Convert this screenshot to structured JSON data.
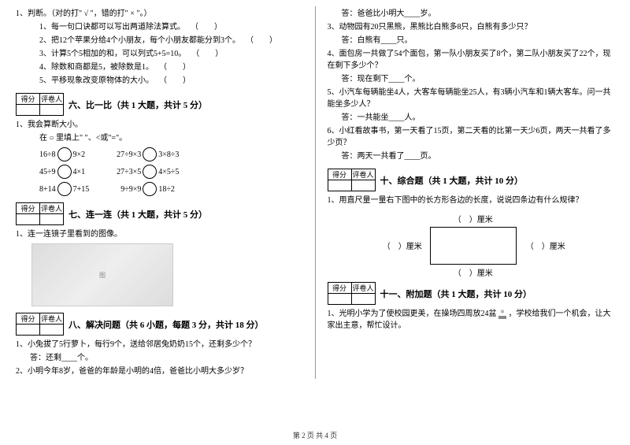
{
  "left": {
    "q1": {
      "stem": "1、判断。（对的打\" √ \"，错的打\" × \"。）",
      "items": [
        "1、每一句口诀都可以写出两道除法算式。",
        "2、把12个苹果分给4个小朋友，每个小朋友都能分到3个。",
        "3、计算5个5相加的和，可以列式5+5=10。",
        "4、除数和商都是5，被除数是1。",
        "5、平移现象改变原物体的大小。"
      ]
    },
    "sec6": {
      "title": "六、比一比（共 1 大题，共计 5 分）"
    },
    "compare": {
      "stem": "1、我会算断大小。",
      "hint": "在 ○ 里填上\" \"、<或\"=\"。",
      "rows": [
        [
          [
            "16÷8",
            "9×2"
          ],
          [
            "27÷9×3",
            "3×8÷3"
          ]
        ],
        [
          [
            "45÷9",
            "4×1"
          ],
          [
            "27÷3×5",
            "4×5÷5"
          ]
        ],
        [
          [
            "8+14",
            "7+15"
          ],
          [
            "9÷9×9",
            "18÷2"
          ]
        ]
      ]
    },
    "sec7": {
      "title": "七、连一连（共 1 大题，共计 5 分）"
    },
    "q7": {
      "stem": "1、连一连镜子里看到的图像。"
    },
    "sec8": {
      "title": "八、解决问题（共 6 小题，每题 3 分，共计 18 分）"
    },
    "q8_1": {
      "stem": "1、小兔拔了5行萝卜，每行9个，送给邻居兔奶奶15个，还剩多少个？",
      "ans": "答：还剩____个。"
    },
    "q8_2": {
      "stem": "2、小明今年8岁，爸爸的年龄是小明的4倍，爸爸比小明大多少岁？"
    },
    "scorebox": {
      "c1": "得分",
      "c2": "评卷人"
    }
  },
  "right": {
    "a2": "答：爸爸比小明大____岁。",
    "q3": {
      "stem": "3、动物园有20只黑熊，黑熊比白熊多8只，白熊有多少只？",
      "ans": "答：白熊有____只。"
    },
    "q4": {
      "stem": "4、面包房一共做了54个面包，第一队小朋友买了8个，第二队小朋友买了22个，现在剩下多少个？",
      "ans": "答：现在剩下____个。"
    },
    "q5": {
      "stem": "5、小汽车每辆能坐4人，大客车每辆能坐25人，有3辆小汽车和1辆大客车。问一共能坐多少人？",
      "ans": "答：一共能坐____人。"
    },
    "q6": {
      "stem": "6、小红看故事书，第一天看了15页，第二天看的比第一天少6页，两天一共看了多少页？",
      "ans": "答：两天一共看了____页。"
    },
    "sec10": {
      "title": "十、综合题（共 1 大题，共计 10 分）"
    },
    "q10": {
      "stem": "1、用直尺量一量右下图中的长方形各边的长度，说说四条边有什么规律？"
    },
    "rect": {
      "unit": "（　）厘米"
    },
    "sec11": {
      "title": "十一、附加题（共 1 大题，共计 10 分）"
    },
    "q11": {
      "stem_a": "1、光明小学为了使校园更美，在操场四周放24盆 ",
      "stem_b": " ，学校给我们一个机会，让大家出主意，帮忙设计。"
    },
    "scorebox": {
      "c1": "得分",
      "c2": "评卷人"
    }
  },
  "footer": "第 2 页 共 4 页"
}
